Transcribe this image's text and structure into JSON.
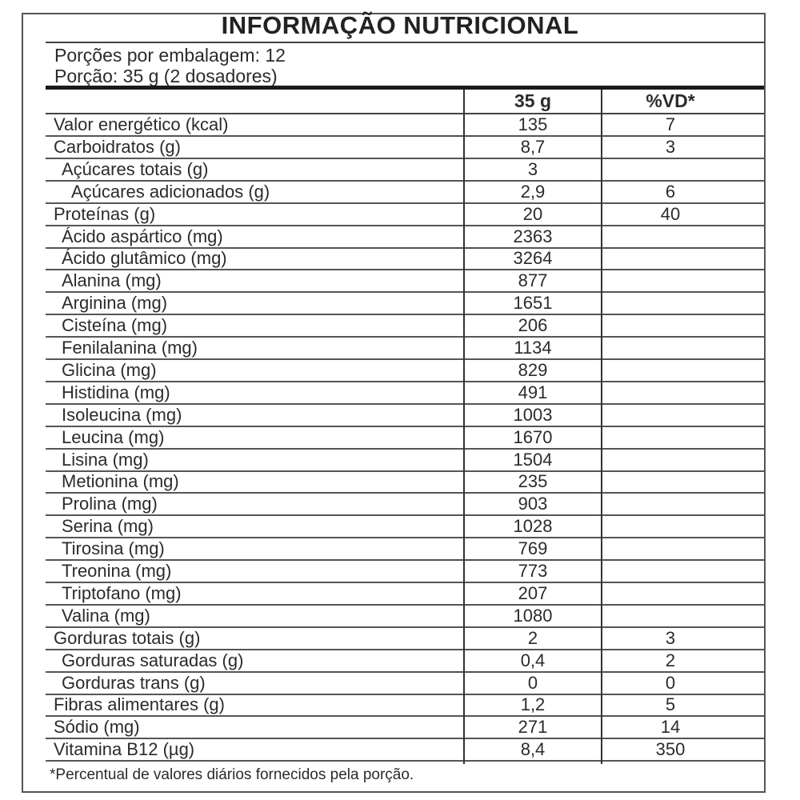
{
  "title": "INFORMAÇÃO NUTRICIONAL",
  "servings_per_package": "Porções por embalagem: 12",
  "serving_size": "Porção: 35 g (2 dosadores)",
  "columns": [
    "35 g",
    "%VD*"
  ],
  "rows": [
    {
      "label": "Valor energético (kcal)",
      "amount": "135",
      "vd": "7",
      "indent": 0
    },
    {
      "label": "Carboidratos (g)",
      "amount": "8,7",
      "vd": "3",
      "indent": 0
    },
    {
      "label": "Açúcares totais (g)",
      "amount": "3",
      "vd": "",
      "indent": 1
    },
    {
      "label": "Açúcares adicionados (g)",
      "amount": "2,9",
      "vd": "6",
      "indent": 2
    },
    {
      "label": "Proteínas (g)",
      "amount": "20",
      "vd": "40",
      "indent": 0
    },
    {
      "label": "Ácido aspártico (mg)",
      "amount": "2363",
      "vd": "",
      "indent": 1
    },
    {
      "label": "Ácido glutâmico (mg)",
      "amount": "3264",
      "vd": "",
      "indent": 1
    },
    {
      "label": "Alanina (mg)",
      "amount": "877",
      "vd": "",
      "indent": 1
    },
    {
      "label": "Arginina (mg)",
      "amount": "1651",
      "vd": "",
      "indent": 1
    },
    {
      "label": "Cisteína (mg)",
      "amount": "206",
      "vd": "",
      "indent": 1
    },
    {
      "label": "Fenilalanina (mg)",
      "amount": "1134",
      "vd": "",
      "indent": 1
    },
    {
      "label": "Glicina (mg)",
      "amount": "829",
      "vd": "",
      "indent": 1
    },
    {
      "label": "Histidina (mg)",
      "amount": "491",
      "vd": "",
      "indent": 1
    },
    {
      "label": "Isoleucina (mg)",
      "amount": "1003",
      "vd": "",
      "indent": 1
    },
    {
      "label": "Leucina (mg)",
      "amount": "1670",
      "vd": "",
      "indent": 1
    },
    {
      "label": "Lisina (mg)",
      "amount": "1504",
      "vd": "",
      "indent": 1
    },
    {
      "label": "Metionina (mg)",
      "amount": "235",
      "vd": "",
      "indent": 1
    },
    {
      "label": "Prolina (mg)",
      "amount": "903",
      "vd": "",
      "indent": 1
    },
    {
      "label": "Serina (mg)",
      "amount": "1028",
      "vd": "",
      "indent": 1
    },
    {
      "label": "Tirosina (mg)",
      "amount": "769",
      "vd": "",
      "indent": 1
    },
    {
      "label": "Treonina (mg)",
      "amount": "773",
      "vd": "",
      "indent": 1
    },
    {
      "label": "Triptofano (mg)",
      "amount": "207",
      "vd": "",
      "indent": 1
    },
    {
      "label": "Valina (mg)",
      "amount": "1080",
      "vd": "",
      "indent": 1
    },
    {
      "label": "Gorduras totais (g)",
      "amount": "2",
      "vd": "3",
      "indent": 0
    },
    {
      "label": "Gorduras saturadas (g)",
      "amount": "0,4",
      "vd": "2",
      "indent": 1
    },
    {
      "label": "Gorduras trans (g)",
      "amount": "0",
      "vd": "0",
      "indent": 1
    },
    {
      "label": "Fibras alimentares (g)",
      "amount": "1,2",
      "vd": "5",
      "indent": 0
    },
    {
      "label": "Sódio (mg)",
      "amount": "271",
      "vd": "14",
      "indent": 0
    },
    {
      "label": "Vitamina B12 (µg)",
      "amount": "8,4",
      "vd": "350",
      "indent": 0
    }
  ],
  "footnote": "*Percentual de valores diários fornecidos pela porção."
}
